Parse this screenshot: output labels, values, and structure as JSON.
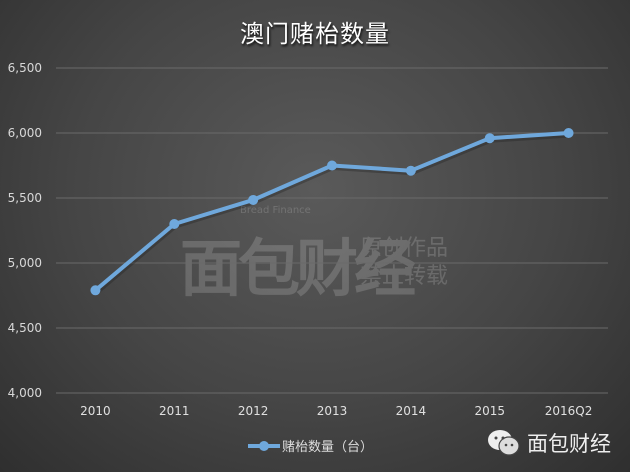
{
  "chart_data": {
    "type": "line",
    "title": "澳门赌枱数量",
    "categories": [
      "2010",
      "2011",
      "2012",
      "2013",
      "2014",
      "2015",
      "2016Q2"
    ],
    "series": [
      {
        "name": "赌枱数量（台）",
        "values": [
          4790,
          5300,
          5485,
          5750,
          5710,
          5960,
          6000
        ],
        "color": "#6fa8dc"
      }
    ],
    "ylim": [
      4000,
      6500
    ],
    "yticks": [
      4000,
      4500,
      5000,
      5500,
      6000,
      6500
    ],
    "ytick_labels": [
      "4,000",
      "4,500",
      "5,000",
      "5,500",
      "6,000",
      "6,500"
    ],
    "grid": true,
    "legend_position": "bottom"
  },
  "watermark": {
    "logo": "面包财经",
    "english": "Bread Finance",
    "line1": "原创作品",
    "line2": "禁止转载"
  },
  "brand": {
    "icon": "wechat-icon",
    "name": "面包财经"
  },
  "colors": {
    "background": "#454545",
    "line": "#6fa8dc",
    "grid": "#6a6a6a"
  }
}
